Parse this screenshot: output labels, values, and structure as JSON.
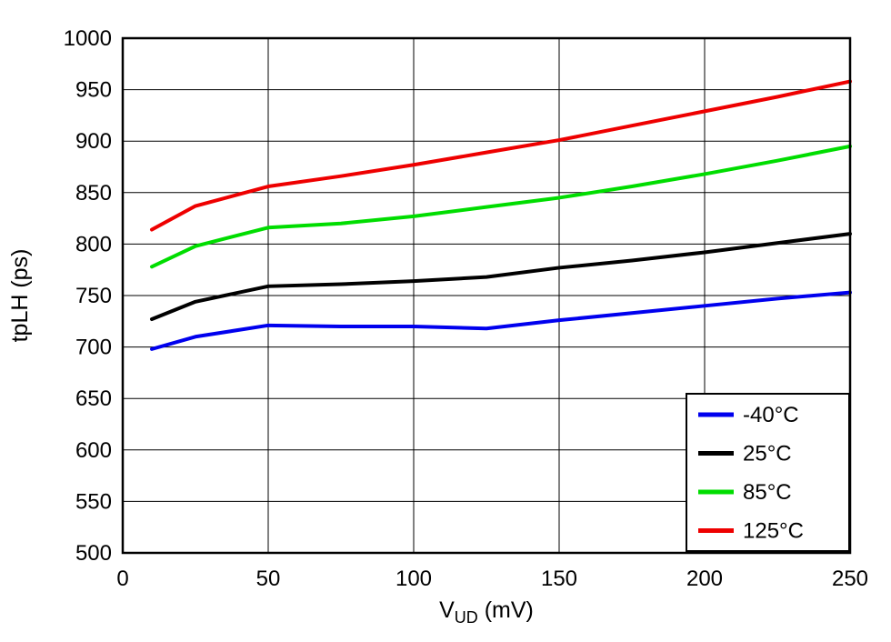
{
  "chart_data": {
    "type": "line",
    "title": "",
    "xlabel": {
      "pre": "V",
      "sub": "UD",
      "post": " (mV)"
    },
    "ylabel": "tpLH (ps)",
    "xlim": [
      0,
      250
    ],
    "ylim": [
      500,
      1000
    ],
    "xticks": [
      0,
      50,
      100,
      150,
      200,
      250
    ],
    "yticks": [
      500,
      550,
      600,
      650,
      700,
      750,
      800,
      850,
      900,
      950,
      1000
    ],
    "grid": true,
    "legend_position": "bottom-right",
    "x": [
      10,
      25,
      50,
      75,
      100,
      125,
      150,
      175,
      200,
      225,
      250
    ],
    "series": [
      {
        "name": "-40°C",
        "color": "#0000ee",
        "values": [
          698,
          710,
          721,
          720,
          720,
          718,
          726,
          733,
          740,
          747,
          753
        ]
      },
      {
        "name": "25°C",
        "color": "#000000",
        "values": [
          727,
          744,
          759,
          761,
          764,
          768,
          777,
          784,
          792,
          801,
          810
        ]
      },
      {
        "name": "85°C",
        "color": "#00dd00",
        "values": [
          778,
          798,
          816,
          820,
          827,
          836,
          845,
          856,
          868,
          881,
          895
        ]
      },
      {
        "name": "125°C",
        "color": "#ee0000",
        "values": [
          814,
          837,
          856,
          866,
          877,
          889,
          901,
          915,
          929,
          943,
          958
        ]
      }
    ]
  }
}
